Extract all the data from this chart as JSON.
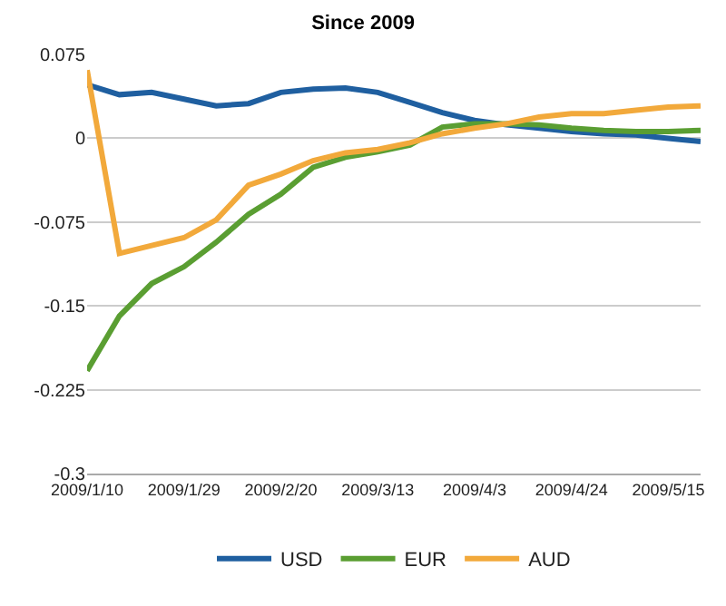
{
  "chart_data": {
    "type": "line",
    "title": "Since 2009",
    "categories": [
      "2009/1/10",
      null,
      null,
      "2009/1/29",
      null,
      null,
      "2009/2/20",
      null,
      null,
      "2009/3/13",
      null,
      null,
      "2009/4/3",
      null,
      null,
      "2009/4/24",
      null,
      null,
      "2009/5/15",
      null
    ],
    "series": [
      {
        "name": "USD",
        "color": "#1f5fa0",
        "values": [
          0.048,
          0.039,
          0.041,
          0.035,
          0.029,
          0.031,
          0.041,
          0.044,
          0.045,
          0.041,
          0.032,
          0.023,
          0.016,
          0.012,
          0.009,
          0.006,
          0.004,
          0.003,
          0.0,
          -0.003
        ]
      },
      {
        "name": "EUR",
        "color": "#5a9e32",
        "values": [
          -0.208,
          -0.159,
          -0.13,
          -0.115,
          -0.093,
          -0.068,
          -0.05,
          -0.026,
          -0.017,
          -0.012,
          -0.006,
          0.01,
          0.013,
          0.013,
          0.012,
          0.009,
          0.007,
          0.006,
          0.006,
          0.007
        ]
      },
      {
        "name": "AUD",
        "color": "#f2a93b",
        "values": [
          0.061,
          -0.103,
          -0.096,
          -0.089,
          -0.073,
          -0.042,
          -0.032,
          -0.02,
          -0.013,
          -0.01,
          -0.004,
          0.004,
          0.009,
          0.013,
          0.019,
          0.022,
          0.022,
          0.025,
          0.028,
          0.029
        ]
      }
    ],
    "ylim": [
      -0.3,
      0.075
    ],
    "yticks": [
      -0.3,
      -0.225,
      -0.15,
      -0.075,
      0,
      0.075
    ],
    "grid": "y",
    "legend": "bottom",
    "marker": "none",
    "line_style": "solid"
  }
}
